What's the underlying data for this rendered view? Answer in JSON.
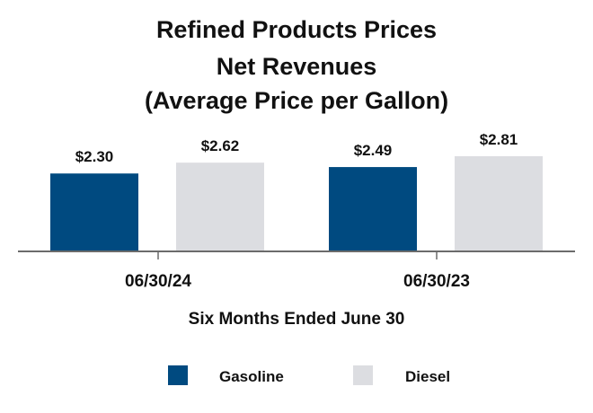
{
  "chart_data": {
    "type": "bar",
    "title_lines": [
      "Refined Products Prices",
      "Net Revenues",
      "(Average Price per Gallon)"
    ],
    "categories": [
      "06/30/24",
      "06/30/23"
    ],
    "series": [
      {
        "name": "Gasoline",
        "color": "#004A80",
        "values": [
          2.3,
          2.49
        ],
        "labels": [
          "$2.30",
          "$2.49"
        ]
      },
      {
        "name": "Diesel",
        "color": "#DCDDE1",
        "values": [
          2.62,
          2.81
        ],
        "labels": [
          "$2.62",
          "$2.81"
        ]
      }
    ],
    "xlabel": "Six Months Ended June 30",
    "ylabel": "",
    "ylim": [
      0,
      2.81
    ],
    "grid": false,
    "legend_position": "bottom"
  }
}
